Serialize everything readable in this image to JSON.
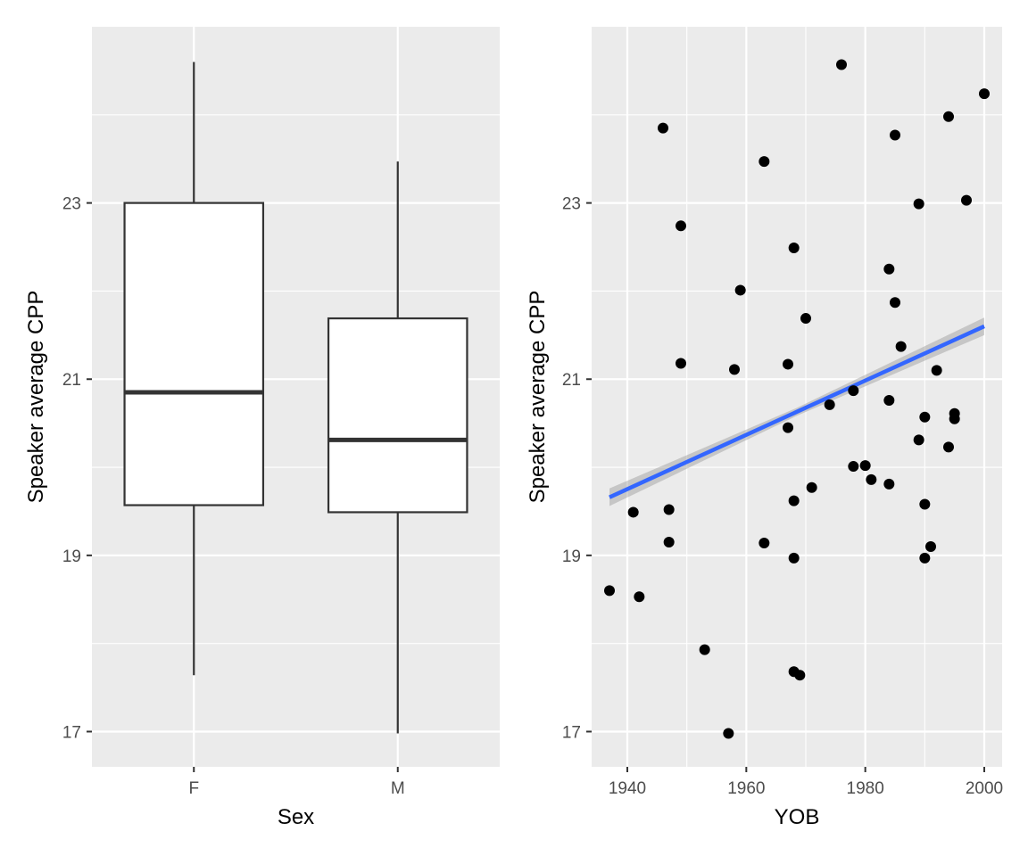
{
  "chart_data": [
    {
      "type": "box",
      "xlabel": "Sex",
      "ylabel": "Speaker average CPP",
      "ylim": [
        16.6,
        25.0
      ],
      "yticks": [
        17,
        19,
        21,
        23
      ],
      "yticks_labels": [
        "17",
        "19",
        "21",
        "23"
      ],
      "categories": [
        "F",
        "M"
      ],
      "boxes": [
        {
          "category": "F",
          "lower_whisker": 17.64,
          "q1": 19.57,
          "median": 20.85,
          "q3": 23.0,
          "upper_whisker": 24.6
        },
        {
          "category": "M",
          "lower_whisker": 16.98,
          "q1": 19.49,
          "median": 20.31,
          "q3": 21.69,
          "upper_whisker": 23.47
        }
      ],
      "grid": true
    },
    {
      "type": "scatter",
      "xlabel": "YOB",
      "ylabel": "Speaker average CPP",
      "xlim": [
        1934,
        2003
      ],
      "ylim": [
        16.6,
        25.0
      ],
      "xticks": [
        1940,
        1960,
        1980,
        2000
      ],
      "xticks_labels": [
        "1940",
        "1960",
        "1980",
        "2000"
      ],
      "yticks": [
        17,
        19,
        21,
        23
      ],
      "yticks_labels": [
        "17",
        "19",
        "21",
        "23"
      ],
      "points": [
        [
          1937,
          18.6
        ],
        [
          1941,
          19.49
        ],
        [
          1942,
          18.53
        ],
        [
          1946,
          23.85
        ],
        [
          1947,
          19.52
        ],
        [
          1947,
          19.15
        ],
        [
          1949,
          22.74
        ],
        [
          1949,
          21.18
        ],
        [
          1953,
          17.93
        ],
        [
          1957,
          16.98
        ],
        [
          1958,
          21.11
        ],
        [
          1959,
          22.01
        ],
        [
          1963,
          23.47
        ],
        [
          1963,
          19.14
        ],
        [
          1967,
          21.17
        ],
        [
          1967,
          20.45
        ],
        [
          1968,
          22.49
        ],
        [
          1968,
          19.62
        ],
        [
          1968,
          18.97
        ],
        [
          1968,
          17.68
        ],
        [
          1969,
          17.64
        ],
        [
          1970,
          21.69
        ],
        [
          1971,
          19.77
        ],
        [
          1974,
          20.71
        ],
        [
          1976,
          24.57
        ],
        [
          1978,
          20.87
        ],
        [
          1978,
          20.01
        ],
        [
          1980,
          20.02
        ],
        [
          1981,
          19.86
        ],
        [
          1984,
          22.25
        ],
        [
          1984,
          20.76
        ],
        [
          1984,
          19.81
        ],
        [
          1985,
          23.77
        ],
        [
          1985,
          21.87
        ],
        [
          1986,
          21.37
        ],
        [
          1989,
          22.99
        ],
        [
          1989,
          20.31
        ],
        [
          1990,
          20.57
        ],
        [
          1990,
          19.58
        ],
        [
          1990,
          18.97
        ],
        [
          1991,
          19.1
        ],
        [
          1992,
          21.1
        ],
        [
          1994,
          23.98
        ],
        [
          1994,
          20.23
        ],
        [
          1995,
          20.61
        ],
        [
          1995,
          20.55
        ],
        [
          1997,
          23.03
        ],
        [
          2000,
          24.24
        ]
      ],
      "trend_line": {
        "method": "lm",
        "x": [
          1937,
          2000
        ],
        "y": [
          19.66,
          21.6
        ],
        "se_band": [
          0.1,
          0.1
        ]
      },
      "grid": true
    }
  ]
}
